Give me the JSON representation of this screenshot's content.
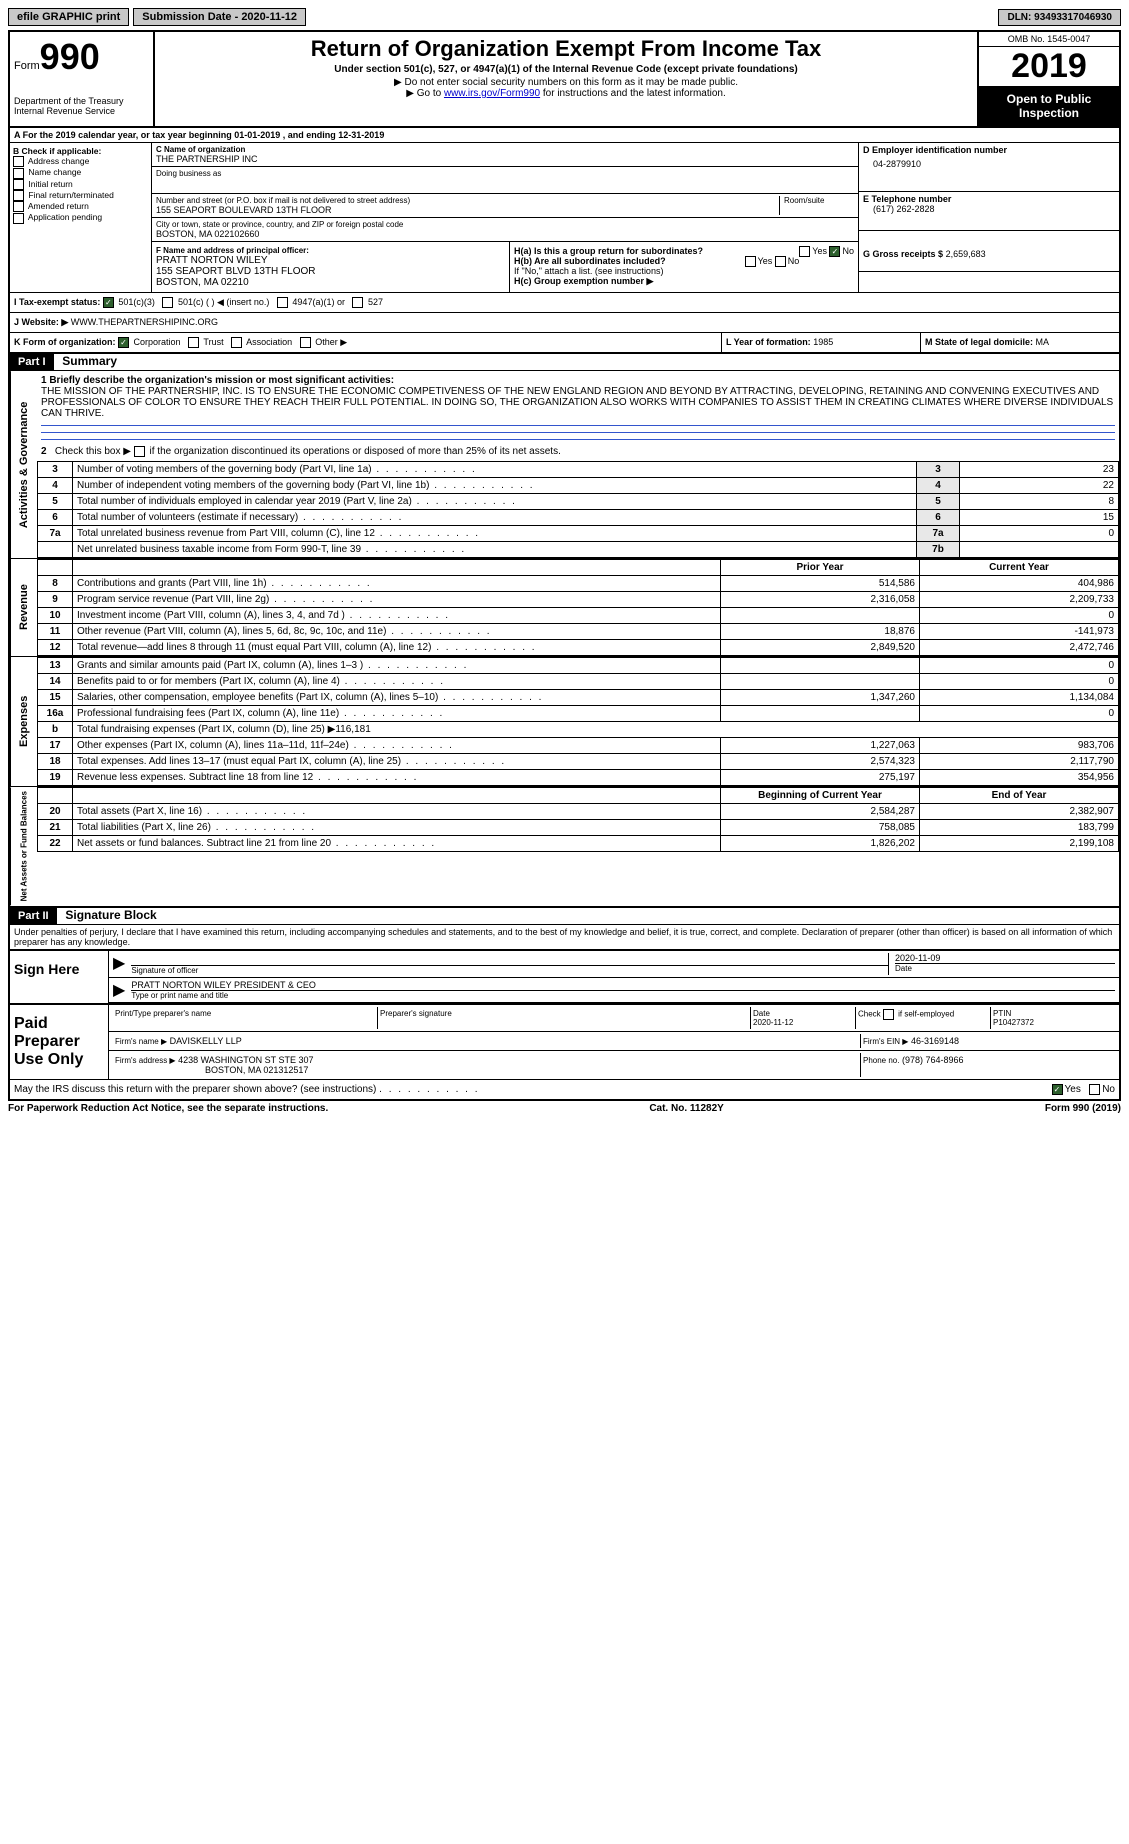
{
  "topbar": {
    "efile": "efile GRAPHIC print",
    "submission": "Submission Date - 2020-11-12",
    "dln": "DLN: 93493317046930"
  },
  "header": {
    "form_prefix": "Form",
    "form_number": "990",
    "dept": "Department of the Treasury",
    "irs": "Internal Revenue Service",
    "title": "Return of Organization Exempt From Income Tax",
    "subtitle": "Under section 501(c), 527, or 4947(a)(1) of the Internal Revenue Code (except private foundations)",
    "note1": "▶ Do not enter social security numbers on this form as it may be made public.",
    "note2_prefix": "▶ Go to ",
    "note2_link": "www.irs.gov/Form990",
    "note2_suffix": " for instructions and the latest information.",
    "omb": "OMB No. 1545-0047",
    "year": "2019",
    "open": "Open to Public Inspection"
  },
  "lineA": "A For the 2019 calendar year, or tax year beginning 01-01-2019   , and ending 12-31-2019",
  "boxB": {
    "title": "B Check if applicable:",
    "opts": [
      "Address change",
      "Name change",
      "Initial return",
      "Final return/terminated",
      "Amended return",
      "Application pending"
    ]
  },
  "boxC": {
    "label": "C Name of organization",
    "name": "THE PARTNERSHIP INC",
    "dba_label": "Doing business as",
    "street_label": "Number and street (or P.O. box if mail is not delivered to street address)",
    "room_label": "Room/suite",
    "street": "155 SEAPORT BOULEVARD 13TH FLOOR",
    "city_label": "City or town, state or province, country, and ZIP or foreign postal code",
    "city": "BOSTON, MA  022102660"
  },
  "boxD": {
    "label": "D Employer identification number",
    "value": "04-2879910"
  },
  "boxE": {
    "label": "E Telephone number",
    "value": "(617) 262-2828"
  },
  "boxG": {
    "label": "G Gross receipts $",
    "value": "2,659,683"
  },
  "boxF": {
    "label": "F Name and address of principal officer:",
    "name": "PRATT NORTON WILEY",
    "addr1": "155 SEAPORT BLVD 13TH FLOOR",
    "addr2": "BOSTON, MA  02210"
  },
  "boxH": {
    "a": "H(a)  Is this a group return for subordinates?",
    "b": "H(b)  Are all subordinates included?",
    "note": "If \"No,\" attach a list. (see instructions)",
    "c": "H(c)  Group exemption number ▶",
    "yes": "Yes",
    "no": "No"
  },
  "lineI": {
    "label": "I   Tax-exempt status:",
    "o1": "501(c)(3)",
    "o2": "501(c) (   ) ◀ (insert no.)",
    "o3": "4947(a)(1) or",
    "o4": "527"
  },
  "lineJ": {
    "label": "J   Website: ▶",
    "value": "WWW.THEPARTNERSHIPINC.ORG"
  },
  "lineK": {
    "label": "K Form of organization:",
    "o1": "Corporation",
    "o2": "Trust",
    "o3": "Association",
    "o4": "Other ▶"
  },
  "lineL": {
    "label": "L Year of formation:",
    "value": "1985"
  },
  "lineM": {
    "label": "M State of legal domicile:",
    "value": "MA"
  },
  "part1": {
    "header": "Part I",
    "title": "Summary",
    "l1": "1  Briefly describe the organization's mission or most significant activities:",
    "mission": "THE MISSION OF THE PARTNERSHIP, INC. IS TO ENSURE THE ECONOMIC COMPETIVENESS OF THE NEW ENGLAND REGION AND BEYOND BY ATTRACTING, DEVELOPING, RETAINING AND CONVENING EXECUTIVES AND PROFESSIONALS OF COLOR TO ENSURE THEY REACH THEIR FULL POTENTIAL. IN DOING SO, THE ORGANIZATION ALSO WORKS WITH COMPANIES TO ASSIST THEM IN CREATING CLIMATES WHERE DIVERSE INDIVIDUALS CAN THRIVE.",
    "l2": "2   Check this box ▶        if the organization discontinued its operations or disposed of more than 25% of its net assets.",
    "rows_ag": [
      {
        "n": "3",
        "t": "Number of voting members of the governing body (Part VI, line 1a)",
        "lab": "3",
        "v": "23"
      },
      {
        "n": "4",
        "t": "Number of independent voting members of the governing body (Part VI, line 1b)",
        "lab": "4",
        "v": "22"
      },
      {
        "n": "5",
        "t": "Total number of individuals employed in calendar year 2019 (Part V, line 2a)",
        "lab": "5",
        "v": "8"
      },
      {
        "n": "6",
        "t": "Total number of volunteers (estimate if necessary)",
        "lab": "6",
        "v": "15"
      },
      {
        "n": "7a",
        "t": "Total unrelated business revenue from Part VIII, column (C), line 12",
        "lab": "7a",
        "v": "0"
      },
      {
        "n": "",
        "t": "Net unrelated business taxable income from Form 990-T, line 39",
        "lab": "7b",
        "v": ""
      }
    ],
    "col_prior": "Prior Year",
    "col_current": "Current Year",
    "rows_rev": [
      {
        "n": "8",
        "t": "Contributions and grants (Part VIII, line 1h)",
        "p": "514,586",
        "c": "404,986"
      },
      {
        "n": "9",
        "t": "Program service revenue (Part VIII, line 2g)",
        "p": "2,316,058",
        "c": "2,209,733"
      },
      {
        "n": "10",
        "t": "Investment income (Part VIII, column (A), lines 3, 4, and 7d )",
        "p": "",
        "c": "0"
      },
      {
        "n": "11",
        "t": "Other revenue (Part VIII, column (A), lines 5, 6d, 8c, 9c, 10c, and 11e)",
        "p": "18,876",
        "c": "-141,973"
      },
      {
        "n": "12",
        "t": "Total revenue—add lines 8 through 11 (must equal Part VIII, column (A), line 12)",
        "p": "2,849,520",
        "c": "2,472,746"
      }
    ],
    "rows_exp": [
      {
        "n": "13",
        "t": "Grants and similar amounts paid (Part IX, column (A), lines 1–3 )",
        "p": "",
        "c": "0"
      },
      {
        "n": "14",
        "t": "Benefits paid to or for members (Part IX, column (A), line 4)",
        "p": "",
        "c": "0"
      },
      {
        "n": "15",
        "t": "Salaries, other compensation, employee benefits (Part IX, column (A), lines 5–10)",
        "p": "1,347,260",
        "c": "1,134,084"
      },
      {
        "n": "16a",
        "t": "Professional fundraising fees (Part IX, column (A), line 11e)",
        "p": "",
        "c": "0"
      },
      {
        "n": "b",
        "t": "Total fundraising expenses (Part IX, column (D), line 25) ▶116,181",
        "p": null,
        "c": null
      },
      {
        "n": "17",
        "t": "Other expenses (Part IX, column (A), lines 11a–11d, 11f–24e)",
        "p": "1,227,063",
        "c": "983,706"
      },
      {
        "n": "18",
        "t": "Total expenses. Add lines 13–17 (must equal Part IX, column (A), line 25)",
        "p": "2,574,323",
        "c": "2,117,790"
      },
      {
        "n": "19",
        "t": "Revenue less expenses. Subtract line 18 from line 12",
        "p": "275,197",
        "c": "354,956"
      }
    ],
    "col_beg": "Beginning of Current Year",
    "col_end": "End of Year",
    "rows_na": [
      {
        "n": "20",
        "t": "Total assets (Part X, line 16)",
        "p": "2,584,287",
        "c": "2,382,907"
      },
      {
        "n": "21",
        "t": "Total liabilities (Part X, line 26)",
        "p": "758,085",
        "c": "183,799"
      },
      {
        "n": "22",
        "t": "Net assets or fund balances. Subtract line 21 from line 20",
        "p": "1,826,202",
        "c": "2,199,108"
      }
    ],
    "vtab1": "Activities & Governance",
    "vtab2": "Revenue",
    "vtab3": "Expenses",
    "vtab4": "Net Assets or Fund Balances"
  },
  "part2": {
    "header": "Part II",
    "title": "Signature Block",
    "penalty": "Under penalties of perjury, I declare that I have examined this return, including accompanying schedules and statements, and to the best of my knowledge and belief, it is true, correct, and complete. Declaration of preparer (other than officer) is based on all information of which preparer has any knowledge.",
    "sign_here": "Sign Here",
    "sig_officer": "Signature of officer",
    "sig_date": "2020-11-09",
    "date_label": "Date",
    "officer_name": "PRATT NORTON WILEY PRESIDENT & CEO",
    "type_name": "Type or print name and title",
    "paid": "Paid Preparer Use Only",
    "prep_name_label": "Print/Type preparer's name",
    "prep_sig_label": "Preparer's signature",
    "prep_date_label": "Date",
    "prep_date": "2020-11-12",
    "self_emp": "Check        if self-employed",
    "ptin_label": "PTIN",
    "ptin": "P10427372",
    "firm_name_label": "Firm's name    ▶",
    "firm_name": "DAVISKELLY LLP",
    "firm_ein_label": "Firm's EIN ▶",
    "firm_ein": "46-3169148",
    "firm_addr_label": "Firm's address ▶",
    "firm_addr1": "4238 WASHINGTON ST STE 307",
    "firm_addr2": "BOSTON, MA  021312517",
    "firm_phone_label": "Phone no.",
    "firm_phone": "(978) 764-8966",
    "discuss": "May the IRS discuss this return with the preparer shown above? (see instructions)",
    "yes": "Yes",
    "no": "No"
  },
  "footer": {
    "left": "For Paperwork Reduction Act Notice, see the separate instructions.",
    "mid": "Cat. No. 11282Y",
    "right_prefix": "Form ",
    "right_form": "990",
    "right_suffix": " (2019)"
  }
}
